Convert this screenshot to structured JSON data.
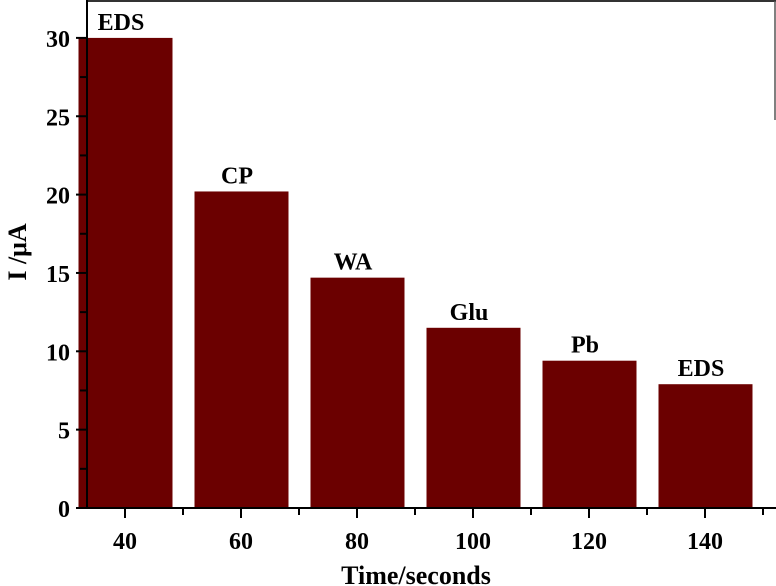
{
  "chart_data": {
    "type": "bar",
    "title": "",
    "xlabel": "Time/seconds",
    "ylabel": "I /μA",
    "categories": [
      40,
      60,
      80,
      100,
      120,
      140
    ],
    "values": [
      30.0,
      20.2,
      14.7,
      11.5,
      9.4,
      7.9
    ],
    "bar_labels": [
      "EDS",
      "CP",
      "WA",
      "Glu",
      "Pb",
      "EDS"
    ],
    "xticks": [
      "40",
      "60",
      "80",
      "100",
      "120",
      "140"
    ],
    "yticks": [
      "0",
      "5",
      "10",
      "15",
      "20",
      "25",
      "30"
    ],
    "ylim": [
      0,
      32.4
    ],
    "xlim": [
      33.9,
      152
    ],
    "grid": false,
    "legend": null,
    "bar_color": "#6b0000"
  }
}
